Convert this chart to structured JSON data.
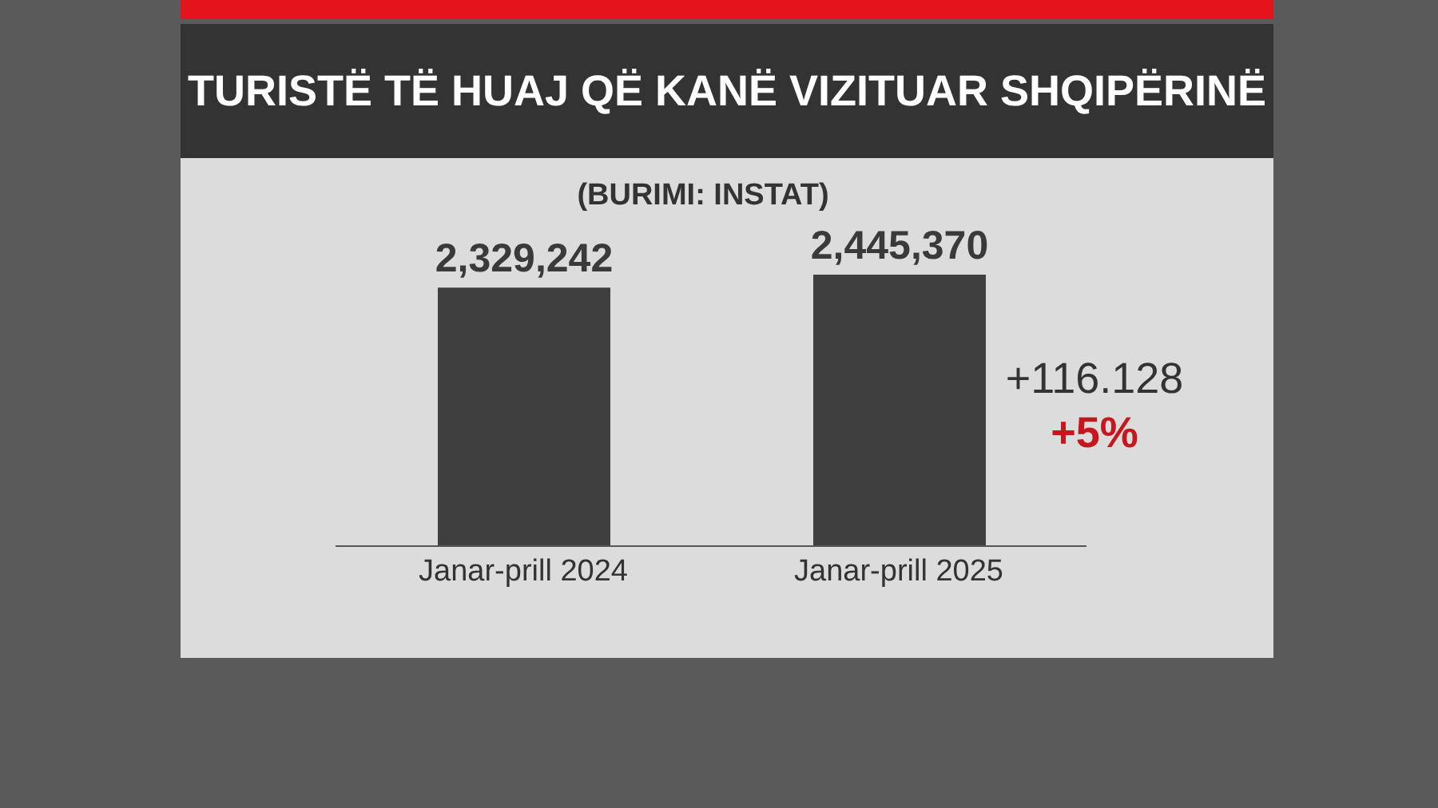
{
  "chart_data": {
    "type": "bar",
    "title": "TURISTË TË HUAJ QË KANË VIZITUAR SHQIPËRINË",
    "subtitle": "(BURIMI: INSTAT)",
    "categories": [
      "Janar-prill 2024",
      "Janar-prill 2025"
    ],
    "values": [
      2329242,
      2445370
    ],
    "value_labels": [
      "2,329,242",
      "2,445,370"
    ],
    "color": "#3f3f3f",
    "annotations": [
      "+116.128",
      "+5%"
    ]
  }
}
